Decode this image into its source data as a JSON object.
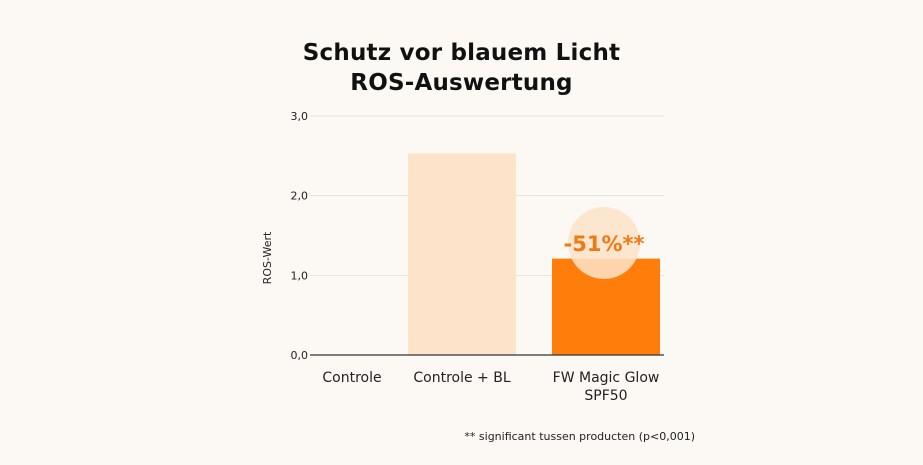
{
  "chart_data": {
    "type": "bar",
    "title": [
      "Schutz vor blauem Licht",
      "ROS-Auswertung"
    ],
    "ylabel": "ROS-Wert",
    "ylim": [
      0,
      3
    ],
    "yticks": [
      "0,0",
      "1,0",
      "2,0",
      "3,0"
    ],
    "grid": true,
    "categories": [
      [
        "Controle"
      ],
      [
        "Controle + BL"
      ],
      [
        "FW Magic Glow",
        "SPF50"
      ]
    ],
    "values": [
      0,
      2.53,
      1.21
    ],
    "bar_colors": [
      "#fde3c9",
      "#fde3c9",
      "#ff7d0a"
    ],
    "annotation": {
      "text": "-51%**",
      "category_index": 2,
      "color": "#f07a12",
      "bubble_color": "#fde3c9"
    },
    "footnote": "** significant tussen producten (p<0,001)"
  }
}
